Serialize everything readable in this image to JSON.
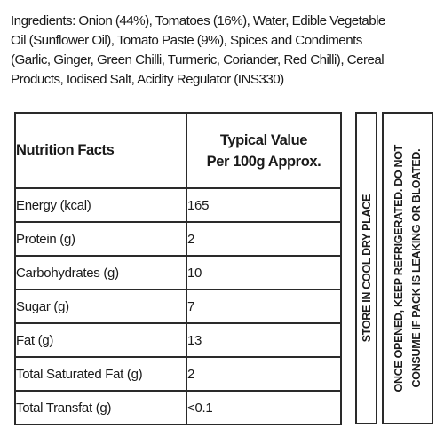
{
  "ingredients": {
    "lines": [
      "Ingredients: Onion (44%), Tomatoes (16%), Water, Edible Vegetable",
      "Oil (Sunflower Oil), Tomato Paste (9%), Spices and Condiments",
      "(Garlic, Ginger, Green Chilli, Turmeric, Coriander, Red Chilli), Cereal",
      "Products, Iodised Salt, Acidity Regulator (INS330)"
    ]
  },
  "nutrition": {
    "header_label": "Nutrition Facts",
    "header_value_line1": "Typical Value",
    "header_value_line2": "Per 100g Approx.",
    "rows": [
      {
        "name": "Energy (kcal)",
        "value": "165"
      },
      {
        "name": "Protein (g)",
        "value": "2"
      },
      {
        "name": "Carbohydrates (g)",
        "value": "10"
      },
      {
        "name": "Sugar (g)",
        "value": "7"
      },
      {
        "name": "Fat (g)",
        "value": "13"
      },
      {
        "name": "Total Saturated Fat (g)",
        "value": "2"
      },
      {
        "name": "Total Transfat (g)",
        "value": "<0.1"
      }
    ]
  },
  "storage": {
    "text": "STORE IN COOL DRY PLACE"
  },
  "after_opening": {
    "line1": "ONCE OPENED, KEEP REFRIGERATED. DO NOT",
    "line2": "CONSUME IF PACK IS LEAKING OR BLOATED."
  }
}
